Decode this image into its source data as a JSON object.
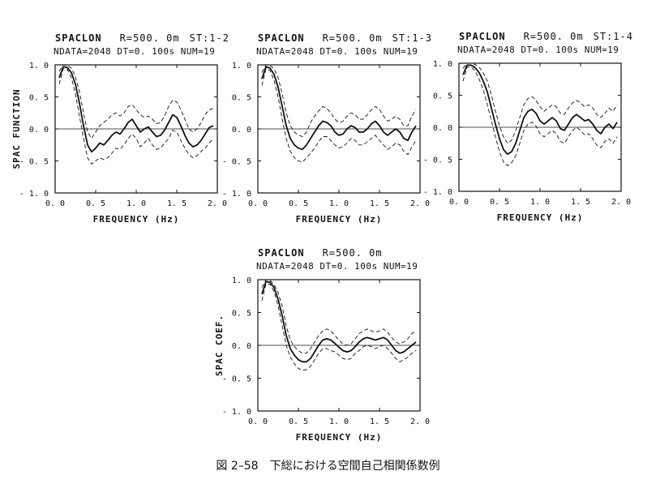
{
  "caption": "図 2–58　下総における空間自己相関係数例",
  "chart_data": [
    {
      "type": "line",
      "title_name": "SPACLON",
      "title_r": "R=500. 0m",
      "title_st": "ST:1-2",
      "subtitle": "NDATA=2048 DT=0. 100s NUM=19",
      "xlabel": "FREQUENCY (Hz)",
      "ylabel": "SPAC FUNCTION",
      "xlim": [
        0.0,
        2.0
      ],
      "ylim": [
        -1.0,
        1.0
      ],
      "x_ticks": [
        "0. 0",
        "0. 5",
        "1. 0",
        "1. 5",
        "2. 0"
      ],
      "y_ticks": [
        "1. 0",
        "0. 5",
        "0. 0",
        "- 0. 5",
        "- 1. 0"
      ],
      "zero_line": true,
      "x": [
        0.05,
        0.1,
        0.15,
        0.2,
        0.25,
        0.3,
        0.35,
        0.4,
        0.45,
        0.5,
        0.55,
        0.6,
        0.65,
        0.7,
        0.75,
        0.8,
        0.85,
        0.9,
        0.95,
        1.0,
        1.05,
        1.1,
        1.15,
        1.2,
        1.25,
        1.3,
        1.35,
        1.4,
        1.45,
        1.5,
        1.55,
        1.6,
        1.65,
        1.7,
        1.75,
        1.8,
        1.85,
        1.9,
        1.95
      ],
      "series": [
        {
          "role": "mean",
          "values": [
            0.8,
            0.97,
            0.96,
            0.88,
            0.7,
            0.4,
            0.05,
            -0.25,
            -0.36,
            -0.3,
            -0.22,
            -0.25,
            -0.18,
            -0.1,
            -0.05,
            -0.08,
            0.0,
            0.1,
            0.15,
            0.05,
            -0.05,
            0.0,
            0.03,
            -0.05,
            -0.12,
            -0.1,
            -0.02,
            0.1,
            0.22,
            0.18,
            0.05,
            -0.1,
            -0.22,
            -0.28,
            -0.25,
            -0.18,
            -0.08,
            0.02,
            0.05
          ]
        },
        {
          "role": "upper",
          "values": [
            0.9,
            1.0,
            0.99,
            0.95,
            0.82,
            0.58,
            0.25,
            -0.05,
            -0.15,
            -0.05,
            0.05,
            0.1,
            0.15,
            0.22,
            0.25,
            0.2,
            0.25,
            0.35,
            0.38,
            0.3,
            0.22,
            0.18,
            0.2,
            0.15,
            0.08,
            0.1,
            0.2,
            0.35,
            0.45,
            0.42,
            0.3,
            0.15,
            0.0,
            -0.05,
            0.0,
            0.1,
            0.22,
            0.3,
            0.32
          ]
        },
        {
          "role": "lower",
          "values": [
            0.7,
            0.94,
            0.93,
            0.8,
            0.55,
            0.2,
            -0.15,
            -0.45,
            -0.55,
            -0.5,
            -0.45,
            -0.48,
            -0.45,
            -0.38,
            -0.3,
            -0.32,
            -0.25,
            -0.15,
            -0.08,
            -0.15,
            -0.28,
            -0.22,
            -0.15,
            -0.25,
            -0.32,
            -0.3,
            -0.22,
            -0.15,
            -0.02,
            -0.05,
            -0.18,
            -0.3,
            -0.4,
            -0.45,
            -0.42,
            -0.35,
            -0.3,
            -0.22,
            -0.15
          ]
        }
      ]
    },
    {
      "type": "line",
      "title_name": "SPACLON",
      "title_r": "R=500. 0m",
      "title_st": "ST:1-3",
      "subtitle": "NDATA=2048 DT=0. 100s NUM=19",
      "xlabel": "FREQUENCY (Hz)",
      "ylabel": "",
      "xlim": [
        0.0,
        2.0
      ],
      "ylim": [
        -1.0,
        1.0
      ],
      "x_ticks": [
        "0. 0",
        "0. 5",
        "1. 0",
        "1. 5",
        "2. 0"
      ],
      "y_ticks": [
        "1. 0",
        "0. 5",
        "0. 0",
        "- 0. 5",
        "- 1. 0"
      ],
      "zero_line": true,
      "x": [
        0.05,
        0.1,
        0.15,
        0.2,
        0.25,
        0.3,
        0.35,
        0.4,
        0.45,
        0.5,
        0.55,
        0.6,
        0.65,
        0.7,
        0.75,
        0.8,
        0.85,
        0.9,
        0.95,
        1.0,
        1.05,
        1.1,
        1.15,
        1.2,
        1.25,
        1.3,
        1.35,
        1.4,
        1.45,
        1.5,
        1.55,
        1.6,
        1.65,
        1.7,
        1.75,
        1.8,
        1.85,
        1.9,
        1.95
      ],
      "series": [
        {
          "role": "mean",
          "values": [
            0.78,
            0.97,
            0.95,
            0.85,
            0.65,
            0.35,
            0.05,
            -0.15,
            -0.25,
            -0.3,
            -0.32,
            -0.25,
            -0.15,
            -0.05,
            0.05,
            0.12,
            0.1,
            0.05,
            -0.05,
            -0.1,
            -0.08,
            0.0,
            0.05,
            0.02,
            -0.05,
            -0.05,
            0.0,
            0.08,
            0.12,
            0.05,
            -0.05,
            -0.1,
            -0.05,
            0.0,
            -0.05,
            -0.15,
            -0.18,
            -0.05,
            0.05
          ]
        },
        {
          "role": "upper",
          "values": [
            0.88,
            1.0,
            0.99,
            0.94,
            0.8,
            0.55,
            0.25,
            0.05,
            -0.05,
            -0.1,
            -0.12,
            -0.05,
            0.1,
            0.2,
            0.28,
            0.35,
            0.32,
            0.25,
            0.15,
            0.1,
            0.12,
            0.2,
            0.25,
            0.22,
            0.15,
            0.15,
            0.22,
            0.3,
            0.35,
            0.3,
            0.2,
            0.12,
            0.15,
            0.2,
            0.15,
            0.05,
            0.05,
            0.2,
            0.3
          ]
        },
        {
          "role": "lower",
          "values": [
            0.68,
            0.94,
            0.91,
            0.76,
            0.5,
            0.15,
            -0.15,
            -0.35,
            -0.45,
            -0.5,
            -0.52,
            -0.45,
            -0.38,
            -0.3,
            -0.2,
            -0.12,
            -0.12,
            -0.18,
            -0.25,
            -0.3,
            -0.28,
            -0.22,
            -0.15,
            -0.18,
            -0.25,
            -0.25,
            -0.2,
            -0.15,
            -0.1,
            -0.18,
            -0.25,
            -0.32,
            -0.28,
            -0.22,
            -0.25,
            -0.35,
            -0.4,
            -0.28,
            -0.18
          ]
        }
      ]
    },
    {
      "type": "line",
      "title_name": "SPACLON",
      "title_r": "R=500. 0m",
      "title_st": "ST:1-4",
      "subtitle": "NDATA=2048 DT=0. 100s NUM=19",
      "xlabel": "FREQUENCY (Hz)",
      "ylabel": "",
      "xlim": [
        0.0,
        2.0
      ],
      "ylim": [
        -1.0,
        1.0
      ],
      "x_ticks": [
        "0. 0",
        "0. 5",
        "1. 0",
        "1. 5",
        "2. 0"
      ],
      "y_ticks": [
        "1. 0",
        "0. 5",
        "0. 0",
        "- 0. 5",
        "- 1. 0"
      ],
      "zero_line": true,
      "x": [
        0.05,
        0.1,
        0.15,
        0.2,
        0.25,
        0.3,
        0.35,
        0.4,
        0.45,
        0.5,
        0.55,
        0.6,
        0.65,
        0.7,
        0.75,
        0.8,
        0.85,
        0.9,
        0.95,
        1.0,
        1.05,
        1.1,
        1.15,
        1.2,
        1.25,
        1.3,
        1.35,
        1.4,
        1.45,
        1.5,
        1.55,
        1.6,
        1.65,
        1.7,
        1.75,
        1.8,
        1.85,
        1.9,
        1.95
      ],
      "series": [
        {
          "role": "mean",
          "values": [
            0.82,
            0.97,
            0.97,
            0.93,
            0.85,
            0.72,
            0.55,
            0.3,
            0.05,
            -0.18,
            -0.35,
            -0.42,
            -0.38,
            -0.25,
            -0.05,
            0.15,
            0.25,
            0.28,
            0.22,
            0.1,
            0.05,
            0.1,
            0.15,
            0.1,
            -0.02,
            -0.05,
            0.05,
            0.15,
            0.2,
            0.15,
            0.1,
            0.12,
            0.05,
            -0.05,
            -0.1,
            0.0,
            0.05,
            -0.02,
            0.08
          ]
        },
        {
          "role": "upper",
          "values": [
            0.92,
            1.0,
            1.0,
            0.98,
            0.94,
            0.85,
            0.72,
            0.5,
            0.25,
            0.02,
            -0.15,
            -0.25,
            -0.2,
            -0.05,
            0.15,
            0.35,
            0.45,
            0.48,
            0.42,
            0.32,
            0.25,
            0.3,
            0.35,
            0.32,
            0.22,
            0.2,
            0.3,
            0.38,
            0.42,
            0.38,
            0.32,
            0.35,
            0.3,
            0.2,
            0.15,
            0.22,
            0.3,
            0.25,
            0.35
          ]
        },
        {
          "role": "lower",
          "values": [
            0.72,
            0.94,
            0.94,
            0.88,
            0.75,
            0.58,
            0.35,
            0.1,
            -0.15,
            -0.38,
            -0.55,
            -0.6,
            -0.55,
            -0.45,
            -0.25,
            -0.05,
            0.05,
            0.08,
            0.02,
            -0.1,
            -0.15,
            -0.1,
            -0.05,
            -0.1,
            -0.22,
            -0.25,
            -0.15,
            -0.05,
            0.0,
            -0.05,
            -0.12,
            -0.1,
            -0.18,
            -0.28,
            -0.32,
            -0.22,
            -0.18,
            -0.25,
            -0.15
          ]
        }
      ]
    },
    {
      "type": "line",
      "title_name": "SPACLON",
      "title_r": "R=500. 0m",
      "title_st": "",
      "subtitle": "NDATA=2048 DT=0. 100s NUM=19",
      "xlabel": "FREQUENCY (Hz)",
      "ylabel": "SPAC COEF.",
      "xlim": [
        0.0,
        2.0
      ],
      "ylim": [
        -1.0,
        1.0
      ],
      "x_ticks": [
        "0. 0",
        "0. 5",
        "1. 0",
        "1. 5",
        "2. 0"
      ],
      "y_ticks": [
        "1. 0",
        "0. 5",
        "0. 0",
        "- 0. 5",
        "- 1. 0"
      ],
      "zero_line": true,
      "x": [
        0.05,
        0.1,
        0.15,
        0.2,
        0.25,
        0.3,
        0.35,
        0.4,
        0.45,
        0.5,
        0.55,
        0.6,
        0.65,
        0.7,
        0.75,
        0.8,
        0.85,
        0.9,
        0.95,
        1.0,
        1.05,
        1.1,
        1.15,
        1.2,
        1.25,
        1.3,
        1.35,
        1.4,
        1.45,
        1.5,
        1.55,
        1.6,
        1.65,
        1.7,
        1.75,
        1.8,
        1.85,
        1.9,
        1.95
      ],
      "series": [
        {
          "role": "mean",
          "values": [
            0.78,
            0.97,
            0.96,
            0.88,
            0.7,
            0.45,
            0.15,
            -0.05,
            -0.15,
            -0.22,
            -0.25,
            -0.25,
            -0.2,
            -0.1,
            0.0,
            0.08,
            0.1,
            0.08,
            0.03,
            -0.03,
            -0.08,
            -0.1,
            -0.08,
            -0.02,
            0.05,
            0.1,
            0.12,
            0.1,
            0.08,
            0.1,
            0.12,
            0.08,
            0.0,
            -0.08,
            -0.12,
            -0.1,
            -0.05,
            0.0,
            0.05
          ]
        },
        {
          "role": "upper",
          "values": [
            0.88,
            1.0,
            0.99,
            0.93,
            0.8,
            0.6,
            0.3,
            0.08,
            -0.02,
            -0.08,
            -0.12,
            -0.12,
            -0.05,
            0.05,
            0.15,
            0.22,
            0.25,
            0.22,
            0.15,
            0.08,
            0.02,
            0.0,
            0.02,
            0.1,
            0.18,
            0.22,
            0.25,
            0.22,
            0.2,
            0.22,
            0.25,
            0.2,
            0.12,
            0.05,
            0.02,
            0.05,
            0.1,
            0.18,
            0.22
          ]
        },
        {
          "role": "lower",
          "values": [
            0.68,
            0.94,
            0.93,
            0.82,
            0.6,
            0.3,
            0.0,
            -0.18,
            -0.28,
            -0.35,
            -0.38,
            -0.37,
            -0.32,
            -0.22,
            -0.12,
            -0.05,
            -0.05,
            -0.08,
            -0.1,
            -0.15,
            -0.2,
            -0.22,
            -0.2,
            -0.12,
            -0.08,
            -0.02,
            0.0,
            -0.02,
            -0.05,
            -0.02,
            0.0,
            -0.05,
            -0.12,
            -0.2,
            -0.25,
            -0.22,
            -0.18,
            -0.12,
            -0.08
          ]
        }
      ]
    }
  ]
}
